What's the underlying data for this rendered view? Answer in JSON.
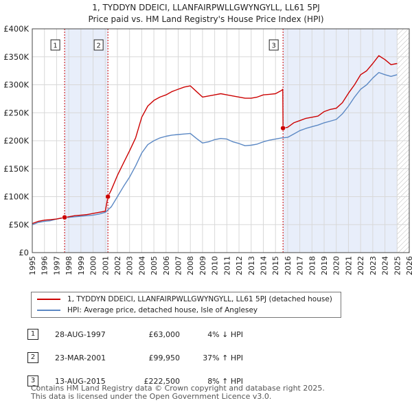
{
  "title": {
    "line1": "1, TYDDYN DDEICI, LLANFAIRPWLLGWYNGYLL, LL61 5PJ",
    "line2": "Price paid vs. HM Land Registry's House Price Index (HPI)"
  },
  "colors": {
    "property": "#cc0000",
    "hpi": "#5b88c4",
    "shade": "#e8eefa",
    "grid": "#d8d8d8",
    "marker_line": "#cc0000"
  },
  "chart_data": {
    "type": "line",
    "title": "Price paid vs. HM Land Registry's House Price Index (HPI)",
    "xlim": [
      1995,
      2026
    ],
    "ylim": [
      0,
      400000
    ],
    "x_ticks": [
      "1995",
      "1996",
      "1997",
      "1998",
      "1999",
      "2000",
      "2001",
      "2002",
      "2003",
      "2004",
      "2005",
      "2006",
      "2007",
      "2008",
      "2009",
      "2010",
      "2011",
      "2012",
      "2013",
      "2014",
      "2015",
      "2016",
      "2017",
      "2018",
      "2019",
      "2020",
      "2021",
      "2022",
      "2023",
      "2024",
      "2025",
      "2026"
    ],
    "y_ticks": [
      {
        "value": 0,
        "label": "£0"
      },
      {
        "value": 50000,
        "label": "£50K"
      },
      {
        "value": 100000,
        "label": "£100K"
      },
      {
        "value": 150000,
        "label": "£150K"
      },
      {
        "value": 200000,
        "label": "£200K"
      },
      {
        "value": 250000,
        "label": "£250K"
      },
      {
        "value": 300000,
        "label": "£300K"
      },
      {
        "value": 350000,
        "label": "£350K"
      },
      {
        "value": 400000,
        "label": "£400K"
      }
    ],
    "series": [
      {
        "name": "1, TYDDYN DDEICI, LLANFAIRPWLLGWYNGYLL, LL61 5PJ (detached house)",
        "color": "#cc0000",
        "x": [
          1995.0,
          1995.5,
          1996.0,
          1996.5,
          1997.0,
          1997.66,
          1998.0,
          1998.5,
          1999.0,
          1999.5,
          2000.0,
          2000.5,
          2001.0,
          2001.22,
          2001.5,
          2002.0,
          2002.5,
          2003.0,
          2003.5,
          2004.0,
          2004.5,
          2005.0,
          2005.5,
          2006.0,
          2006.5,
          2007.0,
          2007.5,
          2008.0,
          2008.5,
          2009.0,
          2009.5,
          2010.0,
          2010.5,
          2011.0,
          2011.5,
          2012.0,
          2012.5,
          2013.0,
          2013.5,
          2014.0,
          2014.5,
          2015.0,
          2015.5,
          2015.6,
          2015.62,
          2016.0,
          2016.5,
          2017.0,
          2017.5,
          2018.0,
          2018.5,
          2019.0,
          2019.5,
          2020.0,
          2020.5,
          2021.0,
          2021.5,
          2022.0,
          2022.5,
          2023.0,
          2023.5,
          2024.0,
          2024.5,
          2025.0
        ],
        "y": [
          52000,
          56000,
          58000,
          59000,
          60000,
          63000,
          64000,
          66000,
          67000,
          68000,
          70000,
          72000,
          74000,
          99950,
          112000,
          138000,
          160000,
          182000,
          205000,
          242000,
          262000,
          272000,
          278000,
          282000,
          288000,
          292000,
          296000,
          298000,
          288000,
          278000,
          280000,
          282000,
          284000,
          282000,
          280000,
          278000,
          276000,
          276000,
          278000,
          282000,
          283000,
          284000,
          290000,
          292000,
          222500,
          224000,
          232000,
          236000,
          240000,
          242000,
          244000,
          252000,
          256000,
          258000,
          268000,
          285000,
          300000,
          318000,
          325000,
          338000,
          352000,
          345000,
          336000,
          338000
        ]
      },
      {
        "name": "HPI: Average price, detached house, Isle of Anglesey",
        "color": "#5b88c4",
        "x": [
          1995.0,
          1995.5,
          1996.0,
          1996.5,
          1997.0,
          1997.5,
          1998.0,
          1998.5,
          1999.0,
          1999.5,
          2000.0,
          2000.5,
          2001.0,
          2001.5,
          2002.0,
          2002.5,
          2003.0,
          2003.5,
          2004.0,
          2004.5,
          2005.0,
          2005.5,
          2006.0,
          2006.5,
          2007.0,
          2007.5,
          2008.0,
          2008.5,
          2009.0,
          2009.5,
          2010.0,
          2010.5,
          2011.0,
          2011.5,
          2012.0,
          2012.5,
          2013.0,
          2013.5,
          2014.0,
          2014.5,
          2015.0,
          2015.5,
          2016.0,
          2016.5,
          2017.0,
          2017.5,
          2018.0,
          2018.5,
          2019.0,
          2019.5,
          2020.0,
          2020.5,
          2021.0,
          2021.5,
          2022.0,
          2022.5,
          2023.0,
          2023.5,
          2024.0,
          2024.5,
          2025.0
        ],
        "y": [
          50000,
          54000,
          56000,
          57000,
          60000,
          62000,
          63000,
          64000,
          65000,
          66000,
          67000,
          69000,
          72000,
          82000,
          100000,
          118000,
          135000,
          155000,
          178000,
          193000,
          200000,
          205000,
          208000,
          210000,
          211000,
          212000,
          213000,
          204000,
          196000,
          198000,
          202000,
          204000,
          203000,
          198000,
          195000,
          191000,
          192000,
          194000,
          198000,
          201000,
          203000,
          205000,
          206000,
          212000,
          218000,
          222000,
          225000,
          228000,
          232000,
          235000,
          238000,
          248000,
          262000,
          278000,
          292000,
          300000,
          312000,
          322000,
          318000,
          315000,
          318000
        ]
      }
    ],
    "sales": [
      {
        "label": "1",
        "x": 1997.66,
        "y": 63000
      },
      {
        "label": "2",
        "x": 2001.22,
        "y": 99950
      },
      {
        "label": "3",
        "x": 2015.62,
        "y": 222500
      }
    ],
    "shaded_ranges": [
      [
        1997.66,
        2001.22
      ],
      [
        2015.62,
        2025.0
      ]
    ],
    "hatched_range": [
      2025.0,
      2026.0
    ],
    "legend_position": "bottom"
  },
  "legend": {
    "property_label": "1, TYDDYN DDEICI, LLANFAIRPWLLGWYNGYLL, LL61 5PJ (detached house)",
    "hpi_label": "HPI: Average price, detached house, Isle of Anglesey"
  },
  "sales_table": [
    {
      "num": "1",
      "date": "28-AUG-1997",
      "price": "£63,000",
      "hpi": "4% ↓ HPI"
    },
    {
      "num": "2",
      "date": "23-MAR-2001",
      "price": "£99,950",
      "hpi": "37% ↑ HPI"
    },
    {
      "num": "3",
      "date": "13-AUG-2015",
      "price": "£222,500",
      "hpi": "8% ↑ HPI"
    }
  ],
  "footer": {
    "line1": "Contains HM Land Registry data © Crown copyright and database right 2025.",
    "line2": "This data is licensed under the Open Government Licence v3.0."
  }
}
